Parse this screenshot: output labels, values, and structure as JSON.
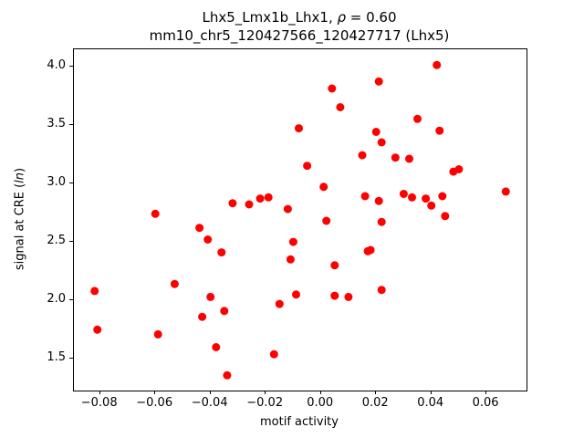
{
  "figure": {
    "title_line1_prefix": "Lhx5_Lmx1b_Lhx1, ",
    "title_line1_rho": "ρ",
    "title_line1_suffix": " = 0.60",
    "title_line2": "mm10_chr5_120427566_120427717 (Lhx5)",
    "xlabel": "motif activity",
    "ylabel_prefix": "signal at CRE (",
    "ylabel_italic": "ln",
    "ylabel_suffix": ")"
  },
  "chart_data": {
    "type": "scatter",
    "title": "Lhx5_Lmx1b_Lhx1, ρ = 0.60",
    "subtitle": "mm10_chr5_120427566_120427717 (Lhx5)",
    "xlabel": "motif activity",
    "ylabel": "signal at CRE (ln)",
    "legend": "none",
    "grid": false,
    "xlim": [
      -0.0895,
      0.0745
    ],
    "ylim": [
      1.23,
      4.145
    ],
    "x_ticks": [
      -0.08,
      -0.06,
      -0.04,
      -0.02,
      0.0,
      0.02,
      0.04,
      0.06
    ],
    "x_tick_labels": [
      "−0.08",
      "−0.06",
      "−0.04",
      "−0.02",
      "0.00",
      "0.02",
      "0.04",
      "0.06"
    ],
    "y_ticks": [
      1.5,
      2.0,
      2.5,
      3.0,
      3.5,
      4.0
    ],
    "y_tick_labels": [
      "1.5",
      "2.0",
      "2.5",
      "3.0",
      "3.5",
      "4.0"
    ],
    "marker_color": "#ff0000",
    "marker_radius": 4.5,
    "points": [
      [
        -0.082,
        2.08
      ],
      [
        -0.081,
        1.75
      ],
      [
        -0.06,
        2.74
      ],
      [
        -0.059,
        1.71
      ],
      [
        -0.053,
        2.14
      ],
      [
        -0.044,
        2.62
      ],
      [
        -0.043,
        1.86
      ],
      [
        -0.041,
        2.52
      ],
      [
        -0.04,
        2.03
      ],
      [
        -0.038,
        1.6
      ],
      [
        -0.036,
        2.41
      ],
      [
        -0.035,
        1.91
      ],
      [
        -0.034,
        1.36
      ],
      [
        -0.032,
        2.83
      ],
      [
        -0.026,
        2.82
      ],
      [
        -0.022,
        2.87
      ],
      [
        -0.019,
        2.88
      ],
      [
        -0.017,
        1.54
      ],
      [
        -0.015,
        1.97
      ],
      [
        -0.012,
        2.78
      ],
      [
        -0.011,
        2.35
      ],
      [
        -0.01,
        2.5
      ],
      [
        -0.009,
        2.05
      ],
      [
        -0.008,
        3.47
      ],
      [
        -0.005,
        3.15
      ],
      [
        0.001,
        2.97
      ],
      [
        0.002,
        2.68
      ],
      [
        0.004,
        3.81
      ],
      [
        0.005,
        2.3
      ],
      [
        0.005,
        2.04
      ],
      [
        0.007,
        3.65
      ],
      [
        0.01,
        2.03
      ],
      [
        0.015,
        3.24
      ],
      [
        0.016,
        2.89
      ],
      [
        0.017,
        2.42
      ],
      [
        0.018,
        2.43
      ],
      [
        0.02,
        3.44
      ],
      [
        0.021,
        3.87
      ],
      [
        0.021,
        2.85
      ],
      [
        0.022,
        3.35
      ],
      [
        0.022,
        2.67
      ],
      [
        0.022,
        2.09
      ],
      [
        0.027,
        3.22
      ],
      [
        0.03,
        2.91
      ],
      [
        0.032,
        3.21
      ],
      [
        0.033,
        2.88
      ],
      [
        0.035,
        3.55
      ],
      [
        0.038,
        2.87
      ],
      [
        0.04,
        2.81
      ],
      [
        0.042,
        4.01
      ],
      [
        0.043,
        3.45
      ],
      [
        0.044,
        2.89
      ],
      [
        0.045,
        2.72
      ],
      [
        0.048,
        3.1
      ],
      [
        0.05,
        3.12
      ],
      [
        0.067,
        2.93
      ]
    ]
  }
}
